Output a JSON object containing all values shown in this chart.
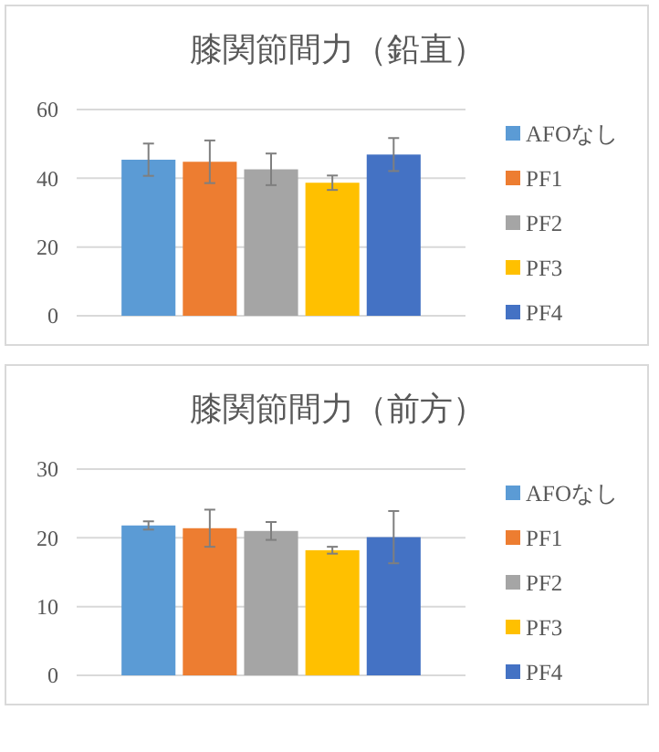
{
  "chart_data": [
    {
      "type": "bar",
      "title": "膝関節間力（鉛直）",
      "categories": [
        null
      ],
      "ylim": [
        0,
        60
      ],
      "yticks": [
        0,
        20,
        40,
        60
      ],
      "grid": "y",
      "legend": "right",
      "series": [
        {
          "name": "AFOなし",
          "color": "#5b9bd5",
          "values": [
            45.4
          ],
          "errors": [
            4.7
          ]
        },
        {
          "name": "PF1",
          "color": "#ed7d31",
          "values": [
            44.8
          ],
          "errors": [
            6.2
          ]
        },
        {
          "name": "PF2",
          "color": "#a5a5a5",
          "values": [
            42.6
          ],
          "errors": [
            4.6
          ]
        },
        {
          "name": "PF3",
          "color": "#ffc000",
          "values": [
            38.7
          ],
          "errors": [
            2.1
          ]
        },
        {
          "name": "PF4",
          "color": "#4472c4",
          "values": [
            46.9
          ],
          "errors": [
            4.8
          ]
        }
      ]
    },
    {
      "type": "bar",
      "title": "膝関節間力（前方）",
      "categories": [
        null
      ],
      "ylim": [
        0,
        30
      ],
      "yticks": [
        0,
        10,
        20,
        30
      ],
      "grid": "y",
      "legend": "right",
      "series": [
        {
          "name": "AFOなし",
          "color": "#5b9bd5",
          "values": [
            21.8
          ],
          "errors": [
            0.6
          ]
        },
        {
          "name": "PF1",
          "color": "#ed7d31",
          "values": [
            21.4
          ],
          "errors": [
            2.7
          ]
        },
        {
          "name": "PF2",
          "color": "#a5a5a5",
          "values": [
            21.0
          ],
          "errors": [
            1.3
          ]
        },
        {
          "name": "PF3",
          "color": "#ffc000",
          "values": [
            18.2
          ],
          "errors": [
            0.5
          ]
        },
        {
          "name": "PF4",
          "color": "#4472c4",
          "values": [
            20.1
          ],
          "errors": [
            3.8
          ]
        }
      ]
    }
  ]
}
